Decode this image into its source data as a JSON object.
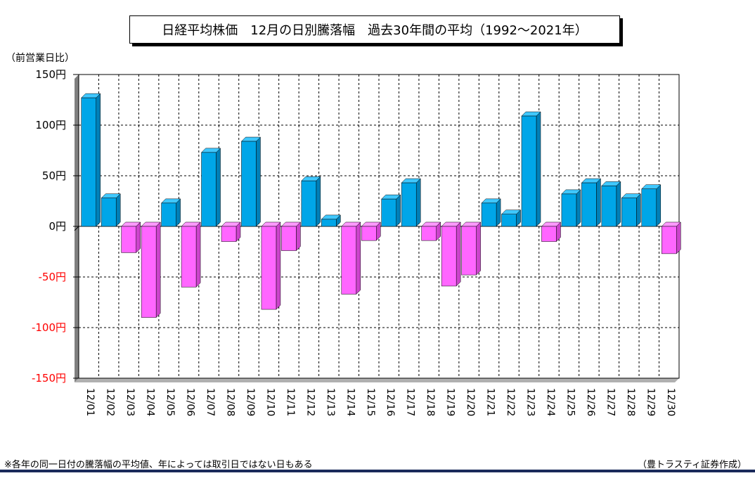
{
  "title": "日経平均株価　12月の日別騰落幅　過去30年間の平均（1992～2021年）",
  "unit_label": "（前営業日比）",
  "footnote": "※各年の同一日付の騰落幅の平均値、年によっては取引日ではない日もある",
  "credit": "（豊トラスティ証券作成）",
  "colors": {
    "positive": "#00a6e8",
    "negative": "#ff66ff",
    "negative_tick": "#ff0000",
    "positive_tick": "#000000"
  },
  "chart_data": {
    "type": "bar",
    "title": "日経平均株価　12月の日別騰落幅　過去30年間の平均（1992～2021年）",
    "ylabel": "（前営業日比）",
    "ylim": [
      -150,
      150
    ],
    "yticks": [
      150,
      100,
      50,
      0,
      -50,
      -100,
      -150
    ],
    "ytick_labels": [
      "150円",
      "100円",
      "50円",
      "0円",
      "-50円",
      "-100円",
      "-150円"
    ],
    "grid": true,
    "categories": [
      "12/01",
      "12/02",
      "12/03",
      "12/04",
      "12/05",
      "12/06",
      "12/07",
      "12/08",
      "12/09",
      "12/10",
      "12/11",
      "12/12",
      "12/13",
      "12/14",
      "12/15",
      "12/16",
      "12/17",
      "12/18",
      "12/19",
      "12/20",
      "12/21",
      "12/22",
      "12/23",
      "12/24",
      "12/25",
      "12/26",
      "12/27",
      "12/28",
      "12/29",
      "12/30"
    ],
    "values": [
      127,
      28,
      -26,
      -90,
      23,
      -60,
      73,
      -15,
      84,
      -82,
      -24,
      45,
      7,
      -67,
      -14,
      27,
      43,
      -14,
      -59,
      -48,
      23,
      12,
      109,
      -15,
      32,
      43,
      40,
      28,
      37,
      -27
    ]
  }
}
